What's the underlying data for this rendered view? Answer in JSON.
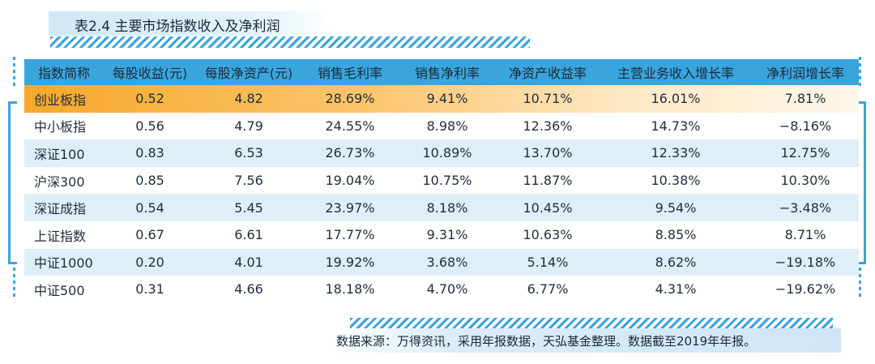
{
  "title": "表2.4 主要市场指数收入及净利润",
  "columns": [
    "指数简称",
    "每股收益(元)",
    "每股净资产(元)",
    "销售毛利率",
    "销售净利率",
    "净资产收益率",
    "主营业务收入增长率",
    "净利润增长率"
  ],
  "rows": [
    [
      "创业板指",
      "0.52",
      "4.82",
      "28.69%",
      "9.41%",
      "10.71%",
      "16.01%",
      "7.81%"
    ],
    [
      "中小板指",
      "0.56",
      "4.79",
      "24.55%",
      "8.98%",
      "12.36%",
      "14.73%",
      "−8.16%"
    ],
    [
      "深证100",
      "0.83",
      "6.53",
      "26.73%",
      "10.89%",
      "13.70%",
      "12.33%",
      "12.75%"
    ],
    [
      "沪深300",
      "0.85",
      "7.56",
      "19.04%",
      "10.75%",
      "11.87%",
      "10.38%",
      "10.30%"
    ],
    [
      "深证成指",
      "0.54",
      "5.45",
      "23.97%",
      "8.18%",
      "10.45%",
      "9.54%",
      "−3.48%"
    ],
    [
      "上证指数",
      "0.67",
      "6.61",
      "17.77%",
      "9.31%",
      "10.63%",
      "8.85%",
      "8.71%"
    ],
    [
      "中证1000",
      "0.20",
      "4.01",
      "19.92%",
      "3.68%",
      "5.14%",
      "8.62%",
      "−19.18%"
    ],
    [
      "中证500",
      "0.31",
      "4.66",
      "18.18%",
      "4.70%",
      "6.77%",
      "4.31%",
      "−19.62%"
    ]
  ],
  "highlight_row": 0,
  "footer": "数据来源：万得资讯，采用年报数据，天弘基金整理。数据截至2019年年报。",
  "colors": {
    "header": "#3aa5dd",
    "stripe": "#deeff9",
    "highlight": "#f7a82a",
    "accent": "#3aa3dc"
  }
}
